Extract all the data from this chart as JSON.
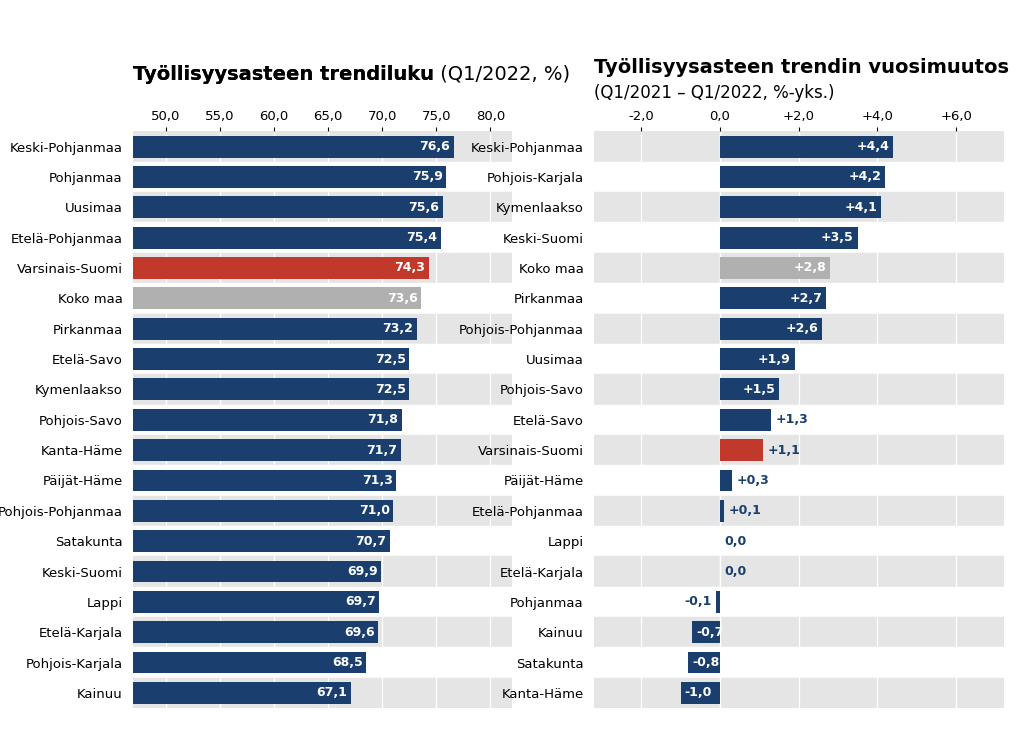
{
  "left_title_bold": "Työllisyysasteen trendiluku",
  "left_title_normal": " (Q1/2022, %)",
  "right_title_line1": "Työllisyysasteen trendin vuosimuutos",
  "right_title_line2": "(Q1/2021 – Q1/2022, %-yks.)",
  "left_categories": [
    "Keski-Pohjanmaa",
    "Pohjanmaa",
    "Uusimaa",
    "Etelä-Pohjanmaa",
    "Varsinais-Suomi",
    "Koko maa",
    "Pirkanmaa",
    "Etelä-Savo",
    "Kymenlaakso",
    "Pohjois-Savo",
    "Kanta-Häme",
    "Päijät-Häme",
    "Pohjois-Pohjanmaa",
    "Satakunta",
    "Keski-Suomi",
    "Lappi",
    "Etelä-Karjala",
    "Pohjois-Karjala",
    "Kainuu"
  ],
  "left_values": [
    76.6,
    75.9,
    75.6,
    75.4,
    74.3,
    73.6,
    73.2,
    72.5,
    72.5,
    71.8,
    71.7,
    71.3,
    71.0,
    70.7,
    69.9,
    69.7,
    69.6,
    68.5,
    67.1
  ],
  "left_colors": [
    "#1a3f6f",
    "#1a3f6f",
    "#1a3f6f",
    "#1a3f6f",
    "#c0392b",
    "#b0b0b0",
    "#1a3f6f",
    "#1a3f6f",
    "#1a3f6f",
    "#1a3f6f",
    "#1a3f6f",
    "#1a3f6f",
    "#1a3f6f",
    "#1a3f6f",
    "#1a3f6f",
    "#1a3f6f",
    "#1a3f6f",
    "#1a3f6f",
    "#1a3f6f"
  ],
  "left_xlim": [
    47.0,
    82.0
  ],
  "left_xticks": [
    50.0,
    55.0,
    60.0,
    65.0,
    70.0,
    75.0,
    80.0
  ],
  "left_xtick_labels": [
    "50,0",
    "55,0",
    "60,0",
    "65,0",
    "70,0",
    "75,0",
    "80,0"
  ],
  "right_categories": [
    "Keski-Pohjanmaa",
    "Pohjois-Karjala",
    "Kymenlaakso",
    "Keski-Suomi",
    "Koko maa",
    "Pirkanmaa",
    "Pohjois-Pohjanmaa",
    "Uusimaa",
    "Pohjois-Savo",
    "Etelä-Savo",
    "Varsinais-Suomi",
    "Päijät-Häme",
    "Etelä-Pohjanmaa",
    "Lappi",
    "Etelä-Karjala",
    "Pohjanmaa",
    "Kainuu",
    "Satakunta",
    "Kanta-Häme"
  ],
  "right_values": [
    4.4,
    4.2,
    4.1,
    3.5,
    2.8,
    2.7,
    2.6,
    1.9,
    1.5,
    1.3,
    1.1,
    0.3,
    0.1,
    0.0,
    0.0,
    -0.1,
    -0.7,
    -0.8,
    -1.0
  ],
  "right_colors": [
    "#1a3f6f",
    "#1a3f6f",
    "#1a3f6f",
    "#1a3f6f",
    "#b0b0b0",
    "#1a3f6f",
    "#1a3f6f",
    "#1a3f6f",
    "#1a3f6f",
    "#1a3f6f",
    "#c0392b",
    "#1a3f6f",
    "#1a3f6f",
    "#1a3f6f",
    "#1a3f6f",
    "#1a3f6f",
    "#1a3f6f",
    "#1a3f6f",
    "#1a3f6f"
  ],
  "right_xlim": [
    -3.2,
    7.2
  ],
  "right_xticks": [
    -2.0,
    0.0,
    2.0,
    4.0,
    6.0
  ],
  "right_xtick_labels": [
    "-2,0",
    "0,0",
    "+2,0",
    "+4,0",
    "+6,0"
  ],
  "bar_height": 0.72,
  "bg_color": "#ffffff",
  "alt_row_color": "#e5e5e5",
  "text_color_white": "#ffffff",
  "text_color_dark": "#1a3f6f",
  "font_size_title": 14,
  "font_size_subtitle": 12,
  "font_size_labels": 9.5,
  "font_size_values": 9.0,
  "font_size_ticks": 9.5
}
